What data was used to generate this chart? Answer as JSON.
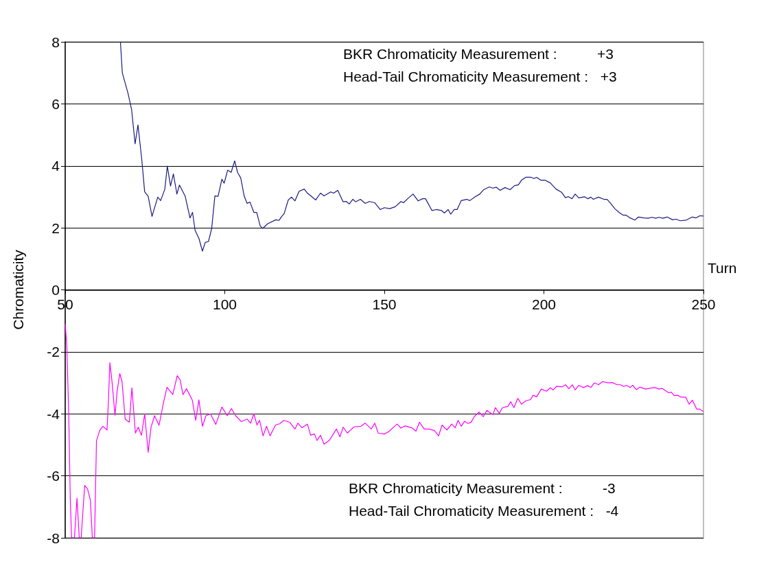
{
  "chart_data": {
    "type": "line",
    "xlabel": "Turn",
    "ylabel": "Chromaticity",
    "xlim": [
      50,
      250
    ],
    "xticks": [
      50,
      100,
      150,
      200,
      250
    ],
    "ylim": [
      -8,
      8
    ],
    "yticks": [
      -8,
      -6,
      -4,
      -2,
      0,
      2,
      4,
      6,
      8
    ],
    "grid": "y",
    "marker": "none",
    "line_style": "solid",
    "annotations": [
      "BKR Chromaticity Measurement :          +3",
      "Head-Tail Chromaticity Measurement :   +3",
      "BKR Chromaticity Measurement :          -3",
      "Head-Tail Chromaticity Measurement :   -4"
    ],
    "series": [
      {
        "color": "#1a1a80",
        "x": [
          67.3,
          67.9,
          69.7,
          70.8,
          71.9,
          72.8,
          74.0,
          74.9,
          76.0,
          77.2,
          79.0,
          79.9,
          81.2,
          82.0,
          83.0,
          83.9,
          85.0,
          85.8,
          87.6,
          89.1,
          89.9,
          90.7,
          91.9,
          93.0,
          93.9,
          94.9,
          95.9,
          96.9,
          97.9,
          99.1,
          99.8,
          100.9,
          102.0,
          103.1,
          104.0,
          105.0,
          106.1,
          107.0,
          107.9,
          109.1,
          110.0,
          111.1,
          111.9,
          113.4,
          116.0,
          117.0,
          117.7,
          118.6,
          119.9,
          120.9,
          122.0,
          123.3,
          124.9,
          125.9,
          128.5,
          130.0,
          131.1,
          133.2,
          134.1,
          135.4,
          137.1,
          138.1,
          139.0,
          140.1,
          141.0,
          142.5,
          144.0,
          145.3,
          147.0,
          148.7,
          150.0,
          151.7,
          153.4,
          155.2,
          156.0,
          157.3,
          159.0,
          160.6,
          162.0,
          162.9,
          164.9,
          166.3,
          167.9,
          168.8,
          170.0,
          170.8,
          171.9,
          172.8,
          174.1,
          175.8,
          176.8,
          178.4,
          179.9,
          181.1,
          182.9,
          184.0,
          185.1,
          186.3,
          187.8,
          189.4,
          190.8,
          192.0,
          193.0,
          194.3,
          196.0,
          196.9,
          197.7,
          199.0,
          200.3,
          202.0,
          203.8,
          205.5,
          206.8,
          207.6,
          208.8,
          209.8,
          210.9,
          212.8,
          213.8,
          214.7,
          215.5,
          217.1,
          218.8,
          219.8,
          220.9,
          222.2,
          223.5,
          224.8,
          225.7,
          227.0,
          228.5,
          229.6,
          231.3,
          232.6,
          233.9,
          235.0,
          236.0,
          237.3,
          238.6,
          240.3,
          241.4,
          242.7,
          244.6,
          246.5,
          247.6,
          248.9,
          249.9
        ],
        "values": [
          8,
          7.0,
          6.33,
          5.82,
          4.71,
          5.32,
          4.2,
          3.16,
          3.02,
          2.37,
          2.99,
          2.88,
          3.24,
          3.99,
          3.35,
          3.74,
          3.09,
          3.38,
          3.02,
          2.32,
          2.5,
          1.92,
          1.66,
          1.25,
          1.53,
          1.56,
          1.98,
          3.03,
          3.02,
          3.57,
          3.44,
          3.86,
          3.79,
          4.16,
          3.79,
          3.61,
          3.02,
          2.79,
          2.83,
          2.5,
          2.5,
          2.06,
          1.98,
          2.13,
          2.26,
          2.24,
          2.35,
          2.46,
          2.9,
          2.99,
          2.87,
          3.18,
          3.25,
          3.12,
          2.9,
          3.12,
          3.03,
          3.16,
          3.12,
          3.21,
          2.84,
          2.85,
          2.77,
          2.92,
          2.84,
          2.92,
          2.79,
          2.85,
          2.81,
          2.59,
          2.65,
          2.62,
          2.68,
          2.85,
          2.81,
          2.94,
          3.09,
          2.87,
          2.94,
          2.94,
          2.56,
          2.59,
          2.56,
          2.48,
          2.59,
          2.44,
          2.59,
          2.59,
          2.88,
          2.92,
          2.88,
          3.0,
          3.09,
          3.23,
          3.32,
          3.28,
          3.31,
          3.21,
          3.3,
          3.23,
          3.36,
          3.39,
          3.54,
          3.63,
          3.63,
          3.59,
          3.63,
          3.54,
          3.54,
          3.45,
          3.25,
          3.15,
          2.97,
          3.01,
          2.94,
          3.09,
          2.97,
          3.0,
          2.94,
          2.99,
          2.92,
          2.99,
          2.92,
          2.92,
          2.79,
          2.62,
          2.5,
          2.41,
          2.41,
          2.32,
          2.25,
          2.35,
          2.32,
          2.31,
          2.34,
          2.31,
          2.34,
          2.31,
          2.35,
          2.26,
          2.28,
          2.23,
          2.25,
          2.35,
          2.32,
          2.39,
          2.38
        ]
      },
      {
        "color": "#ff00ff",
        "x": [
          50.0,
          50.5,
          51.1,
          51.6,
          52.0,
          52.9,
          53.7,
          54.4,
          55.0,
          56.1,
          57.0,
          57.9,
          58.5,
          59.2,
          59.8,
          60.8,
          61.8,
          63.1,
          63.5,
          64.0,
          64.7,
          65.6,
          66.3,
          67.1,
          67.8,
          68.8,
          70.1,
          70.9,
          72.0,
          72.9,
          73.9,
          74.9,
          76.0,
          76.9,
          78.0,
          79.4,
          80.7,
          81.9,
          83.7,
          85.1,
          86.0,
          86.9,
          88.0,
          89.8,
          90.9,
          91.9,
          93.0,
          94.1,
          95.5,
          97.2,
          99.1,
          100.8,
          102.1,
          103.4,
          105.2,
          107.0,
          108.1,
          109.1,
          110.1,
          110.9,
          112.0,
          113.1,
          114.2,
          115.9,
          117.2,
          118.5,
          120.3,
          122.0,
          122.9,
          124.2,
          125.9,
          126.9,
          128.1,
          128.9,
          130.0,
          131.1,
          132.8,
          135.0,
          136.1,
          137.1,
          138.4,
          140.5,
          142.7,
          144.0,
          145.9,
          147.0,
          148.1,
          150.0,
          151.3,
          154.0,
          155.2,
          156.5,
          158.6,
          159.9,
          161.0,
          162.5,
          163.9,
          165.7,
          167.0,
          168.1,
          169.6,
          171.1,
          172.2,
          173.1,
          174.1,
          175.1,
          176.2,
          177.1,
          178.2,
          179.7,
          181.0,
          182.1,
          184.0,
          184.8,
          186.0,
          187.0,
          188.7,
          189.6,
          190.6,
          191.8,
          193.0,
          194.3,
          195.8,
          196.6,
          197.7,
          199.2,
          200.8,
          202.0,
          202.9,
          204.0,
          205.7,
          206.8,
          207.8,
          208.9,
          209.8,
          210.9,
          212.4,
          213.7,
          214.7,
          215.8,
          217.1,
          218.4,
          220.1,
          221.4,
          222.9,
          224.0,
          225.0,
          225.9,
          227.0,
          227.8,
          229.0,
          230.0,
          231.9,
          233.0,
          234.7,
          236.0,
          237.1,
          239.1,
          239.9,
          240.8,
          241.9,
          242.9,
          244.4,
          245.5,
          246.5,
          247.9,
          248.9,
          249.9
        ],
        "values": [
          -1.11,
          -1.78,
          -3.99,
          -6.79,
          -8,
          -8,
          -6.72,
          -8,
          -8,
          -6.31,
          -6.42,
          -6.79,
          -8,
          -8,
          -4.87,
          -4.54,
          -4.4,
          -4.52,
          -3.69,
          -2.35,
          -2.99,
          -4.05,
          -3.25,
          -2.7,
          -2.96,
          -4.17,
          -4.27,
          -3.16,
          -4.62,
          -4.43,
          -4.69,
          -4.0,
          -5.24,
          -4.43,
          -4.06,
          -4.37,
          -3.69,
          -3.14,
          -3.38,
          -2.77,
          -2.9,
          -3.38,
          -3.19,
          -3.55,
          -4.21,
          -3.55,
          -4.4,
          -4.06,
          -4.0,
          -4.34,
          -3.78,
          -4.06,
          -3.83,
          -4.06,
          -4.25,
          -4.17,
          -4.3,
          -4.0,
          -4.36,
          -4.21,
          -4.71,
          -4.4,
          -4.71,
          -4.36,
          -4.32,
          -4.21,
          -4.27,
          -4.49,
          -4.3,
          -4.45,
          -4.33,
          -4.69,
          -4.65,
          -4.86,
          -4.69,
          -4.98,
          -4.85,
          -4.49,
          -4.74,
          -4.43,
          -4.62,
          -4.42,
          -4.4,
          -4.3,
          -4.49,
          -4.3,
          -4.62,
          -4.65,
          -4.58,
          -4.33,
          -4.46,
          -4.39,
          -4.45,
          -4.56,
          -4.27,
          -4.49,
          -4.49,
          -4.54,
          -4.71,
          -4.36,
          -4.52,
          -4.33,
          -4.45,
          -4.21,
          -4.4,
          -4.24,
          -4.31,
          -4.28,
          -4.09,
          -3.94,
          -4.09,
          -3.89,
          -4.03,
          -3.8,
          -3.98,
          -3.8,
          -3.76,
          -3.61,
          -3.8,
          -3.5,
          -3.69,
          -3.58,
          -3.54,
          -3.4,
          -3.45,
          -3.2,
          -3.27,
          -3.16,
          -3.23,
          -3.11,
          -3.13,
          -3.06,
          -3.19,
          -3.06,
          -3.23,
          -3.08,
          -3.15,
          -3.09,
          -3.15,
          -3.0,
          -3.06,
          -2.96,
          -3.0,
          -2.99,
          -3.06,
          -3.06,
          -3.12,
          -3.08,
          -3.15,
          -3.08,
          -3.22,
          -3.14,
          -3.2,
          -3.18,
          -3.15,
          -3.2,
          -3.18,
          -3.32,
          -3.3,
          -3.41,
          -3.4,
          -3.46,
          -3.46,
          -3.69,
          -3.56,
          -3.85,
          -3.85,
          -3.92
        ]
      }
    ]
  }
}
